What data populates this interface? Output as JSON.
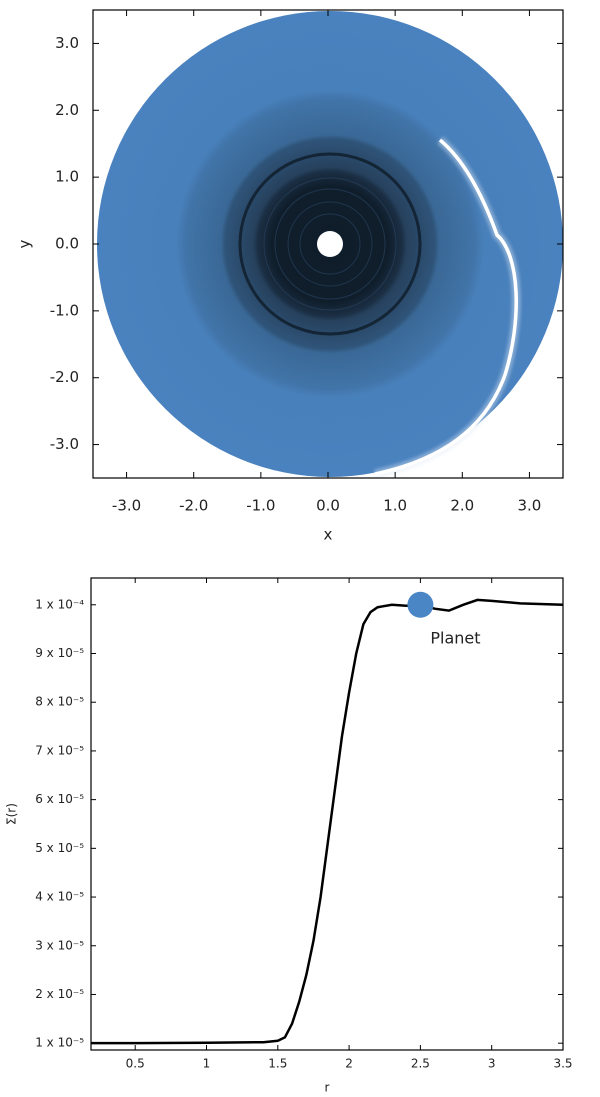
{
  "chart_data": [
    {
      "type": "image",
      "x_label": "x",
      "y_label": "y",
      "xlim": [
        -3.5,
        3.5
      ],
      "ylim": [
        -3.5,
        3.5
      ],
      "xticks": [
        {
          "value": -3,
          "label": "-3.0"
        },
        {
          "value": -2,
          "label": "-2.0"
        },
        {
          "value": -1,
          "label": "-1.0"
        },
        {
          "value": 0,
          "label": "0.0"
        },
        {
          "value": 1,
          "label": "1.0"
        },
        {
          "value": 2,
          "label": "2.0"
        },
        {
          "value": 3,
          "label": "3.0"
        }
      ],
      "yticks": [
        {
          "value": -3,
          "label": "-3.0"
        },
        {
          "value": -2,
          "label": "-2.0"
        },
        {
          "value": -1,
          "label": "-1.0"
        },
        {
          "value": 0,
          "label": "0.0"
        },
        {
          "value": 1,
          "label": "1.0"
        },
        {
          "value": 2,
          "label": "2.0"
        },
        {
          "value": 3,
          "label": "3.0"
        }
      ]
    },
    {
      "type": "line",
      "x_label": "r",
      "y_label": "Σ(r)",
      "xlim": [
        0.19,
        3.5
      ],
      "ylim": [
        8.6e-06,
        0.0001055
      ],
      "xticks": [
        0.5,
        1.0,
        1.5,
        2.0,
        2.5,
        3.0,
        3.5
      ],
      "yticks": [
        {
          "value": 1e-05,
          "label": "1 x 10⁻⁵"
        },
        {
          "value": 2e-05,
          "label": "2 x 10⁻⁵"
        },
        {
          "value": 3e-05,
          "label": "3 x 10⁻⁵"
        },
        {
          "value": 4e-05,
          "label": "4 x 10⁻⁵"
        },
        {
          "value": 5e-05,
          "label": "5 x 10⁻⁵"
        },
        {
          "value": 6e-05,
          "label": "6 x 10⁻⁵"
        },
        {
          "value": 7e-05,
          "label": "7 x 10⁻⁵"
        },
        {
          "value": 8e-05,
          "label": "8 x 10⁻⁵"
        },
        {
          "value": 9e-05,
          "label": "9 x 10⁻⁵"
        },
        {
          "value": 0.0001,
          "label": "1 x 10⁻⁴"
        }
      ],
      "x": [
        0.19,
        0.5,
        1.0,
        1.4,
        1.5,
        1.55,
        1.6,
        1.65,
        1.7,
        1.75,
        1.8,
        1.85,
        1.9,
        1.95,
        2.0,
        2.05,
        2.1,
        2.15,
        2.2,
        2.3,
        2.4,
        2.5,
        2.6,
        2.7,
        2.8,
        2.9,
        3.0,
        3.2,
        3.5
      ],
      "values": [
        1e-05,
        1e-05,
        1.01e-05,
        1.02e-05,
        1.05e-05,
        1.12e-05,
        1.4e-05,
        1.85e-05,
        2.4e-05,
        3.1e-05,
        4e-05,
        5.1e-05,
        6.2e-05,
        7.3e-05,
        8.2e-05,
        9e-05,
        9.6e-05,
        9.85e-05,
        9.95e-05,
        0.0001,
        9.98e-05,
        0.0001,
        9.92e-05,
        9.88e-05,
        0.0001,
        0.000101,
        0.0001008,
        0.0001003,
        0.0001
      ],
      "color": "#000000",
      "planet": {
        "x": 2.5,
        "y": 0.0001,
        "label": "Planet",
        "color": "#4a86c5"
      }
    }
  ]
}
